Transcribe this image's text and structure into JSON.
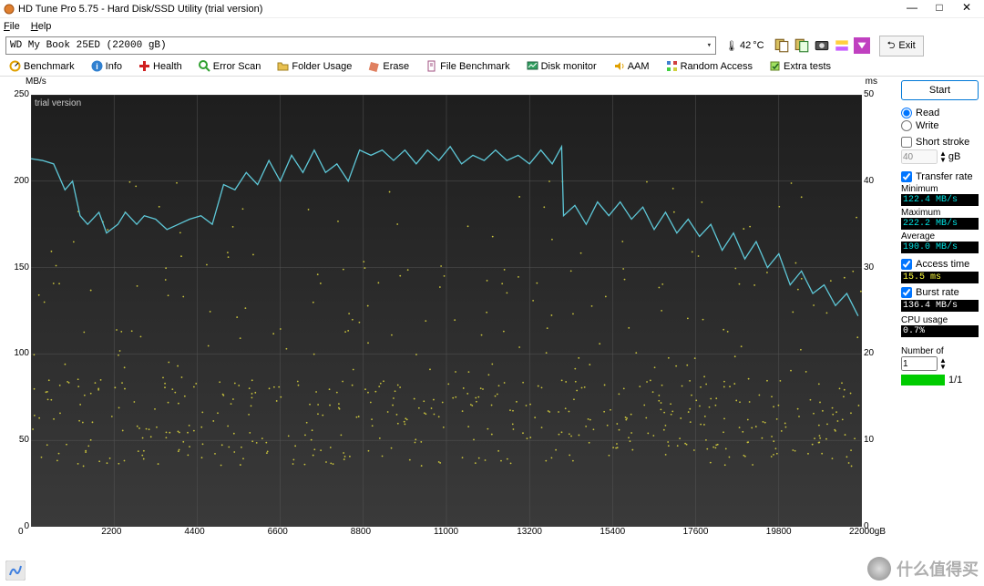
{
  "window": {
    "title": "HD Tune Pro 5.75 - Hard Disk/SSD Utility (trial version)"
  },
  "menubar": {
    "file": "File",
    "help": "Help"
  },
  "toolbar": {
    "drive": "WD    My Book 25ED (22000 gB)",
    "temp": "42",
    "temp_unit": "°C",
    "exit_label": "Exit"
  },
  "tabs": [
    {
      "id": "benchmark",
      "label": "Benchmark"
    },
    {
      "id": "info",
      "label": "Info"
    },
    {
      "id": "health",
      "label": "Health"
    },
    {
      "id": "errorscan",
      "label": "Error Scan"
    },
    {
      "id": "folder",
      "label": "Folder Usage"
    },
    {
      "id": "erase",
      "label": "Erase"
    },
    {
      "id": "filebench",
      "label": "File Benchmark"
    },
    {
      "id": "diskmon",
      "label": "Disk monitor"
    },
    {
      "id": "aam",
      "label": "AAM"
    },
    {
      "id": "random",
      "label": "Random Access"
    },
    {
      "id": "extra",
      "label": "Extra tests"
    }
  ],
  "chart": {
    "type": "line+scatter",
    "trial_text": "trial version",
    "x_unit": "gB",
    "y_left_unit": "MB/s",
    "y_right_unit": "ms",
    "xlim": [
      0,
      22000
    ],
    "xticks": [
      0,
      2200,
      4400,
      6600,
      8800,
      11000,
      13200,
      15400,
      17600,
      19800,
      22000
    ],
    "ylim_left": [
      0,
      250
    ],
    "yticks_left": [
      0,
      50,
      100,
      150,
      200,
      250
    ],
    "ylim_right": [
      0,
      50
    ],
    "yticks_right": [
      0,
      10,
      20,
      30,
      40,
      50
    ],
    "background_gradient": [
      "#1e1e1e",
      "#3a3a3a"
    ],
    "grid_color": "#555555",
    "line_color": "#5ec8d8",
    "scatter_color": "#c8c23c",
    "transfer_line": [
      [
        0,
        213
      ],
      [
        300,
        212
      ],
      [
        600,
        210
      ],
      [
        900,
        195
      ],
      [
        1100,
        200
      ],
      [
        1300,
        180
      ],
      [
        1500,
        175
      ],
      [
        1800,
        182
      ],
      [
        2000,
        170
      ],
      [
        2300,
        175
      ],
      [
        2500,
        182
      ],
      [
        2800,
        175
      ],
      [
        3000,
        180
      ],
      [
        3300,
        178
      ],
      [
        3600,
        172
      ],
      [
        3900,
        175
      ],
      [
        4200,
        178
      ],
      [
        4500,
        180
      ],
      [
        4800,
        175
      ],
      [
        5100,
        198
      ],
      [
        5400,
        195
      ],
      [
        5700,
        205
      ],
      [
        6000,
        198
      ],
      [
        6300,
        212
      ],
      [
        6600,
        200
      ],
      [
        6900,
        215
      ],
      [
        7200,
        205
      ],
      [
        7500,
        218
      ],
      [
        7800,
        205
      ],
      [
        8100,
        210
      ],
      [
        8400,
        200
      ],
      [
        8700,
        218
      ],
      [
        9000,
        215
      ],
      [
        9300,
        218
      ],
      [
        9600,
        212
      ],
      [
        9900,
        218
      ],
      [
        10200,
        210
      ],
      [
        10500,
        218
      ],
      [
        10800,
        212
      ],
      [
        11100,
        220
      ],
      [
        11400,
        210
      ],
      [
        11700,
        215
      ],
      [
        12000,
        212
      ],
      [
        12300,
        218
      ],
      [
        12600,
        212
      ],
      [
        12900,
        215
      ],
      [
        13200,
        210
      ],
      [
        13500,
        218
      ],
      [
        13800,
        210
      ],
      [
        14050,
        220
      ],
      [
        14100,
        180
      ],
      [
        14400,
        186
      ],
      [
        14700,
        175
      ],
      [
        15000,
        188
      ],
      [
        15300,
        180
      ],
      [
        15600,
        188
      ],
      [
        15900,
        178
      ],
      [
        16200,
        185
      ],
      [
        16500,
        172
      ],
      [
        16800,
        182
      ],
      [
        17100,
        170
      ],
      [
        17400,
        178
      ],
      [
        17700,
        168
      ],
      [
        18000,
        175
      ],
      [
        18300,
        160
      ],
      [
        18600,
        170
      ],
      [
        18900,
        155
      ],
      [
        19200,
        165
      ],
      [
        19500,
        150
      ],
      [
        19800,
        158
      ],
      [
        20100,
        140
      ],
      [
        20400,
        148
      ],
      [
        20700,
        135
      ],
      [
        21000,
        140
      ],
      [
        21300,
        128
      ],
      [
        21600,
        135
      ],
      [
        21900,
        122
      ]
    ],
    "access_scatter_density": 600
  },
  "side": {
    "start_label": "Start",
    "read_label": "Read",
    "write_label": "Write",
    "short_stroke_label": "Short stroke",
    "short_stroke_value": "40",
    "short_stroke_unit": "gB",
    "transfer_rate_label": "Transfer rate",
    "minimum_label": "Minimum",
    "minimum_value": "122.4 MB/s",
    "maximum_label": "Maximum",
    "maximum_value": "222.2 MB/s",
    "average_label": "Average",
    "average_value": "190.0 MB/s",
    "access_time_label": "Access time",
    "access_time_value": "15.5 ms",
    "burst_rate_label": "Burst rate",
    "burst_rate_value": "136.4 MB/s",
    "cpu_usage_label": "CPU usage",
    "cpu_usage_value": "0.7%",
    "number_of_label": "Number of",
    "number_of_value": "1",
    "progress_text": "1/1"
  },
  "watermark": "什么值得买",
  "colors": {
    "accent": "#0078d7",
    "stat_cyan": "#00e0e0",
    "stat_yellow": "#ffff40",
    "stat_white": "#ffffff",
    "progress": "#00cc00"
  }
}
